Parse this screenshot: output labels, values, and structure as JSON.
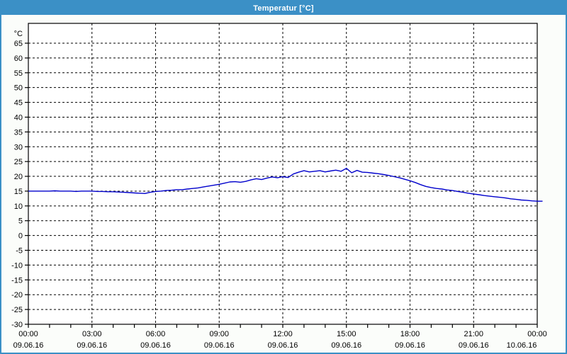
{
  "window": {
    "title": "Temperatur [°C]"
  },
  "colors": {
    "titlebar_bg": "#3B90C6",
    "window_border": "#3B90C6",
    "content_bg": "#FBFDFA",
    "plot_bg": "#FFFFFF",
    "grid": "#000000",
    "axis": "#000000",
    "line": "#0000CC",
    "text": "#000000",
    "title_text": "#FFFFFF"
  },
  "chart_data": {
    "type": "line",
    "title": "Temperatur [°C]",
    "legend": [],
    "grid": "dashed",
    "y_axis": {
      "unit_label": "°C",
      "min": -30,
      "max": 65,
      "tick_step": 5,
      "tick_labels": [
        "-30",
        "-25",
        "-20",
        "-15",
        "-10",
        "-5",
        "0",
        "5",
        "10",
        "15",
        "20",
        "25",
        "30",
        "35",
        "40",
        "45",
        "50",
        "55",
        "60",
        "65"
      ]
    },
    "x_axis": {
      "start_hour": 0,
      "end_hour": 24,
      "minor_tick_hours": 1,
      "major_tick_hours": 3,
      "labels": [
        {
          "time": "00:00",
          "date": "09.06.16"
        },
        {
          "time": "03:00",
          "date": "09.06.16"
        },
        {
          "time": "06:00",
          "date": "09.06.16"
        },
        {
          "time": "09:00",
          "date": "09.06.16"
        },
        {
          "time": "12:00",
          "date": "09.06.16"
        },
        {
          "time": "15:00",
          "date": "09.06.16"
        },
        {
          "time": "18:00",
          "date": "09.06.16"
        },
        {
          "time": "21:00",
          "date": "09.06.16"
        },
        {
          "time": "00:00",
          "date": "10.06.16"
        }
      ]
    },
    "series": [
      {
        "name": "Temperatur",
        "color": "#0000CC",
        "start_hour": 0,
        "interval_minutes": 15,
        "values": [
          15.0,
          15.0,
          15.0,
          15.0,
          15.0,
          15.1,
          15.0,
          15.0,
          15.0,
          14.9,
          15.0,
          15.0,
          15.0,
          14.9,
          14.9,
          14.8,
          14.8,
          14.7,
          14.6,
          14.5,
          14.4,
          14.3,
          14.2,
          14.6,
          14.9,
          15.0,
          15.2,
          15.3,
          15.5,
          15.5,
          15.7,
          15.9,
          16.1,
          16.4,
          16.7,
          17.0,
          17.3,
          17.7,
          18.1,
          18.2,
          18.0,
          18.3,
          18.8,
          19.2,
          18.9,
          19.4,
          19.8,
          19.5,
          19.9,
          19.6,
          20.8,
          21.4,
          21.9,
          21.5,
          21.7,
          21.9,
          21.5,
          21.8,
          22.1,
          21.7,
          22.7,
          21.2,
          22.0,
          21.4,
          21.3,
          21.1,
          20.9,
          20.6,
          20.3,
          19.9,
          19.5,
          19.0,
          18.5,
          17.9,
          17.2,
          16.6,
          16.2,
          15.9,
          15.7,
          15.4,
          15.2,
          14.9,
          14.6,
          14.3,
          14.0,
          13.8,
          13.5,
          13.3,
          13.1,
          12.9,
          12.7,
          12.4,
          12.2,
          12.0,
          11.9,
          11.7,
          11.6,
          11.6
        ]
      }
    ]
  }
}
